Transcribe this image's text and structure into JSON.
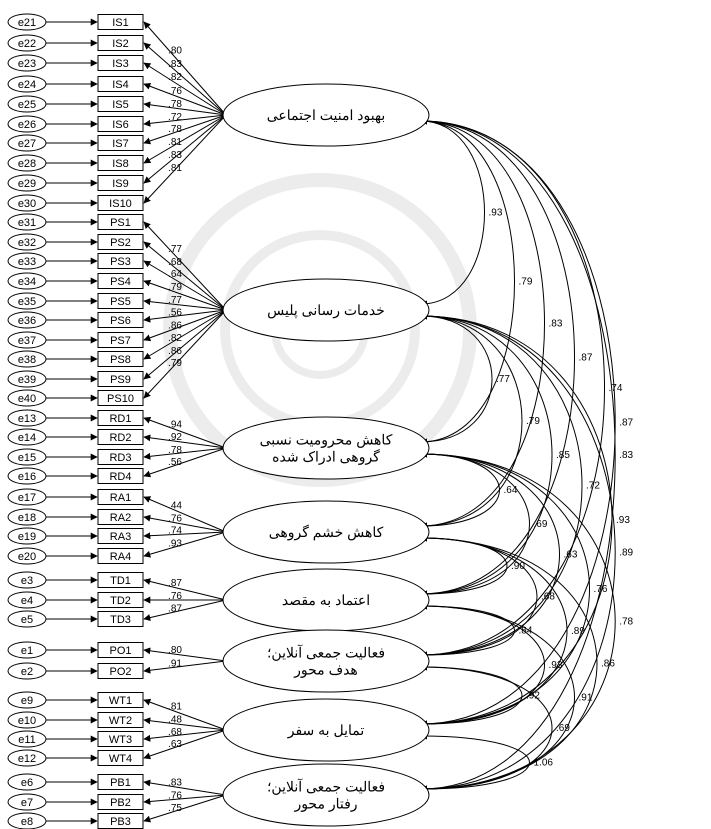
{
  "diagram": {
    "factors": [
      {
        "id": "F1",
        "label_lines": [
          "بهبود امنیت اجتماعی"
        ]
      },
      {
        "id": "F2",
        "label_lines": [
          "خدمات رسانی پلیس"
        ]
      },
      {
        "id": "F3",
        "label_lines": [
          "کاهش محرومیت نسبی",
          "گروهی ادراک شده"
        ]
      },
      {
        "id": "F4",
        "label_lines": [
          "کاهش خشم گروهی"
        ]
      },
      {
        "id": "F5",
        "label_lines": [
          "اعتماد به مقصد"
        ]
      },
      {
        "id": "F6",
        "label_lines": [
          "فعالیت جمعی آنلاین؛",
          "هدف محور"
        ]
      },
      {
        "id": "F7",
        "label_lines": [
          "تمایل به سفر"
        ]
      },
      {
        "id": "F8",
        "label_lines": [
          "فعالیت جمعی آنلاین؛",
          "رفتار محور"
        ]
      }
    ],
    "indicators": [
      {
        "factor": "F1",
        "items": [
          {
            "name": "IS1",
            "error": "e21"
          },
          {
            "name": "IS2",
            "error": "e22"
          },
          {
            "name": "IS3",
            "error": "e23"
          },
          {
            "name": "IS4",
            "error": "e24"
          },
          {
            "name": "IS5",
            "error": "e25"
          },
          {
            "name": "IS6",
            "error": "e26"
          },
          {
            "name": "IS7",
            "error": "e27"
          },
          {
            "name": "IS8",
            "error": "e28"
          },
          {
            "name": "IS9",
            "error": "e29"
          },
          {
            "name": "IS10",
            "error": "e30"
          }
        ]
      },
      {
        "factor": "F2",
        "items": [
          {
            "name": "PS1",
            "error": "e31"
          },
          {
            "name": "PS2",
            "error": "e32"
          },
          {
            "name": "PS3",
            "error": "e33"
          },
          {
            "name": "PS4",
            "error": "e34"
          },
          {
            "name": "PS5",
            "error": "e35"
          },
          {
            "name": "PS6",
            "error": "e36"
          },
          {
            "name": "PS7",
            "error": "e37"
          },
          {
            "name": "PS8",
            "error": "e38"
          },
          {
            "name": "PS9",
            "error": "e39"
          },
          {
            "name": "PS10",
            "error": "e40"
          }
        ]
      },
      {
        "factor": "F3",
        "items": [
          {
            "name": "RD1",
            "error": "e13"
          },
          {
            "name": "RD2",
            "error": "e14"
          },
          {
            "name": "RD3",
            "error": "e15"
          },
          {
            "name": "RD4",
            "error": "e16"
          }
        ]
      },
      {
        "factor": "F4",
        "items": [
          {
            "name": "RA1",
            "error": "e17"
          },
          {
            "name": "RA2",
            "error": "e18"
          },
          {
            "name": "RA3",
            "error": "e19"
          },
          {
            "name": "RA4",
            "error": "e20"
          }
        ]
      },
      {
        "factor": "F5",
        "items": [
          {
            "name": "TD1",
            "error": "e3"
          },
          {
            "name": "TD2",
            "error": "e4"
          },
          {
            "name": "TD3",
            "error": "e5"
          }
        ]
      },
      {
        "factor": "F6",
        "items": [
          {
            "name": "PO1",
            "error": "e1"
          },
          {
            "name": "PO2",
            "error": "e2"
          }
        ]
      },
      {
        "factor": "F7",
        "items": [
          {
            "name": "WT1",
            "error": "e9"
          },
          {
            "name": "WT2",
            "error": "e10"
          },
          {
            "name": "WT3",
            "error": "e11"
          },
          {
            "name": "WT4",
            "error": "e12"
          }
        ]
      },
      {
        "factor": "F8",
        "items": [
          {
            "name": "PB1",
            "error": "e6"
          },
          {
            "name": "PB2",
            "error": "e7"
          },
          {
            "name": "PB3",
            "error": "e8"
          }
        ]
      }
    ],
    "loading_labels": [
      {
        "factor": "F1",
        "values": [
          ".80",
          ".83",
          ".82",
          ".76",
          ".78",
          ".72",
          ".78",
          ".81",
          ".83",
          ".81"
        ]
      },
      {
        "factor": "F2",
        "values": [
          ".77",
          ".68",
          ".64",
          ".79",
          ".77",
          ".56",
          ".86",
          ".82",
          ".86",
          ".79"
        ]
      },
      {
        "factor": "F3",
        "values": [
          ".94",
          ".92",
          ".78",
          ".56"
        ]
      },
      {
        "factor": "F4",
        "values": [
          ".44",
          ".76",
          ".74",
          ".93"
        ]
      },
      {
        "factor": "F5",
        "values": [
          ".87",
          ".76",
          ".87"
        ]
      },
      {
        "factor": "F6",
        "values": [
          ".80",
          ".91"
        ]
      },
      {
        "factor": "F7",
        "values": [
          ".81",
          ".48",
          ".68",
          ".63"
        ]
      },
      {
        "factor": "F8",
        "values": [
          ".83",
          ".76",
          ".75"
        ]
      }
    ],
    "correlations": [
      {
        "from": "F1",
        "to": "F2",
        "value": ".93"
      },
      {
        "from": "F1",
        "to": "F3",
        "value": ".79"
      },
      {
        "from": "F1",
        "to": "F4",
        "value": ".83"
      },
      {
        "from": "F1",
        "to": "F5",
        "value": ".87"
      },
      {
        "from": "F1",
        "to": "F6",
        "value": ".74"
      },
      {
        "from": "F1",
        "to": "F7",
        "value": ".87"
      },
      {
        "from": "F1",
        "to": "F8",
        "value": ".83"
      },
      {
        "from": "F2",
        "to": "F3",
        "value": ".77"
      },
      {
        "from": "F2",
        "to": "F4",
        "value": ".79"
      },
      {
        "from": "F2",
        "to": "F5",
        "value": ".85"
      },
      {
        "from": "F2",
        "to": "F6",
        "value": ".72"
      },
      {
        "from": "F2",
        "to": "F7",
        "value": ".93"
      },
      {
        "from": "F2",
        "to": "F8",
        "value": ".89"
      },
      {
        "from": "F3",
        "to": "F4",
        "value": ".64"
      },
      {
        "from": "F3",
        "to": "F5",
        "value": ".69"
      },
      {
        "from": "F3",
        "to": "F6",
        "value": ".63"
      },
      {
        "from": "F3",
        "to": "F7",
        "value": ".76"
      },
      {
        "from": "F3",
        "to": "F8",
        "value": ".78"
      },
      {
        "from": "F4",
        "to": "F5",
        "value": ".90"
      },
      {
        "from": "F4",
        "to": "F6",
        "value": ".68"
      },
      {
        "from": "F4",
        "to": "F7",
        "value": ".89"
      },
      {
        "from": "F4",
        "to": "F8",
        "value": ".86"
      },
      {
        "from": "F5",
        "to": "F6",
        "value": ".84"
      },
      {
        "from": "F5",
        "to": "F7",
        "value": ".93"
      },
      {
        "from": "F5",
        "to": "F8",
        "value": ".91"
      },
      {
        "from": "F6",
        "to": "F7",
        "value": ".92"
      },
      {
        "from": "F6",
        "to": "F8",
        "value": ".69"
      },
      {
        "from": "F7",
        "to": "F8",
        "value": "1.06"
      }
    ]
  }
}
